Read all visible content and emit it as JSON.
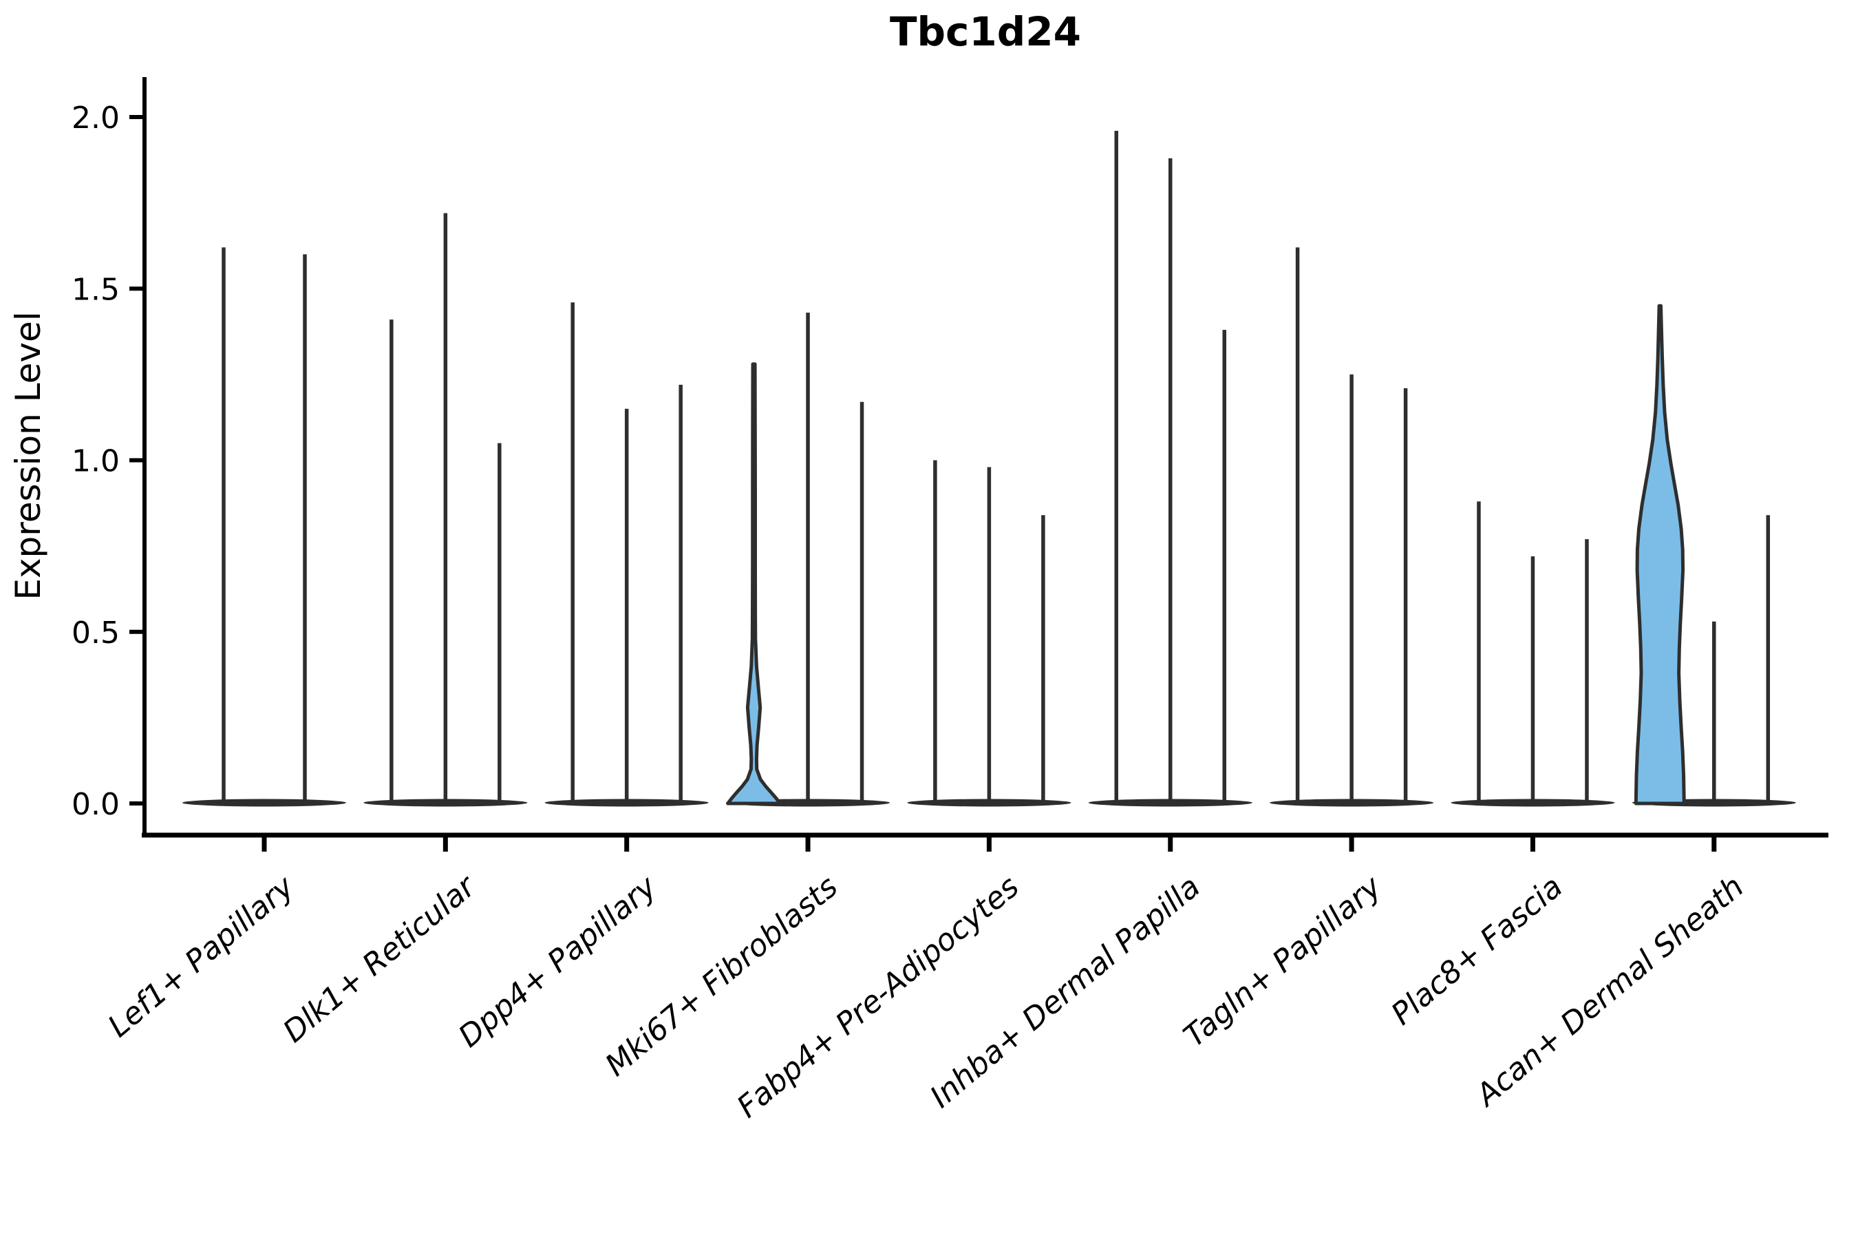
{
  "title": "Tbc1d24",
  "ylabel": "Expression Level",
  "colors": {
    "background": "#ffffff",
    "axis": "#000000",
    "text": "#000000",
    "violin_stroke": "#2e2e2e",
    "violin_fill": "#7cbde8"
  },
  "chart_data": {
    "type": "violin",
    "title": "Tbc1d24",
    "xlabel": "",
    "ylabel": "Expression Level",
    "ylim": [
      0,
      2.05
    ],
    "yticks": [
      0.0,
      0.5,
      1.0,
      1.5,
      2.0
    ],
    "ytick_labels": [
      "0.0",
      "0.5",
      "1.0",
      "1.5",
      "2.0"
    ],
    "grid": false,
    "legend_position": "none",
    "categories": [
      "Lef1+ Papillary",
      "Dlk1+ Reticular",
      "Dpp4+ Papillary",
      "Mki67+ Fibroblasts",
      "Fabp4+ Pre-Adipocytes",
      "Inhba+ Dermal Papilla",
      "Tagln+ Papillary",
      "Plac8+ Fascia",
      "Acan+ Dermal Sheath"
    ],
    "groups": [
      {
        "category": "Lef1+ Papillary",
        "violins": [
          {
            "max": 1.62,
            "filled": false
          },
          {
            "max": 1.6,
            "filled": false
          }
        ]
      },
      {
        "category": "Dlk1+ Reticular",
        "violins": [
          {
            "max": 1.41,
            "filled": false
          },
          {
            "max": 1.72,
            "filled": false
          },
          {
            "max": 1.05,
            "filled": false
          }
        ]
      },
      {
        "category": "Dpp4+ Papillary",
        "violins": [
          {
            "max": 1.46,
            "filled": false
          },
          {
            "max": 1.15,
            "filled": false
          },
          {
            "max": 1.22,
            "filled": false
          }
        ]
      },
      {
        "category": "Mki67+ Fibroblasts",
        "violins": [
          {
            "max": 1.28,
            "filled": true,
            "max_halfwidth": 38,
            "profile": [
              [
                1.28,
                0.04
              ],
              [
                1.1,
                0.045
              ],
              [
                0.9,
                0.05
              ],
              [
                0.7,
                0.05
              ],
              [
                0.55,
                0.055
              ],
              [
                0.48,
                0.06
              ],
              [
                0.4,
                0.1
              ],
              [
                0.33,
                0.18
              ],
              [
                0.28,
                0.24
              ],
              [
                0.22,
                0.18
              ],
              [
                0.17,
                0.12
              ],
              [
                0.13,
                0.1
              ],
              [
                0.1,
                0.11
              ],
              [
                0.07,
                0.25
              ],
              [
                0.05,
                0.45
              ],
              [
                0.03,
                0.68
              ],
              [
                0.015,
                0.85
              ],
              [
                0.0,
                1.0
              ]
            ]
          },
          {
            "max": 1.43,
            "filled": false
          },
          {
            "max": 1.17,
            "filled": false
          }
        ]
      },
      {
        "category": "Fabp4+ Pre-Adipocytes",
        "violins": [
          {
            "max": 1.0,
            "filled": false
          },
          {
            "max": 0.98,
            "filled": false
          },
          {
            "max": 0.84,
            "filled": false
          }
        ]
      },
      {
        "category": "Inhba+ Dermal Papilla",
        "violins": [
          {
            "max": 1.96,
            "filled": false
          },
          {
            "max": 1.88,
            "filled": false
          },
          {
            "max": 1.38,
            "filled": false
          }
        ]
      },
      {
        "category": "Tagln+ Papillary",
        "violins": [
          {
            "max": 1.62,
            "filled": false
          },
          {
            "max": 1.25,
            "filled": false
          },
          {
            "max": 1.21,
            "filled": false
          }
        ]
      },
      {
        "category": "Plac8+ Fascia",
        "violins": [
          {
            "max": 0.88,
            "filled": false
          },
          {
            "max": 0.72,
            "filled": false
          },
          {
            "max": 0.77,
            "filled": false
          }
        ]
      },
      {
        "category": "Acan+ Dermal Sheath",
        "violins": [
          {
            "max": 1.45,
            "filled": true,
            "max_halfwidth": 35,
            "profile": [
              [
                1.45,
                0.035
              ],
              [
                1.38,
                0.06
              ],
              [
                1.3,
                0.09
              ],
              [
                1.22,
                0.13
              ],
              [
                1.14,
                0.19
              ],
              [
                1.06,
                0.3
              ],
              [
                0.99,
                0.45
              ],
              [
                0.93,
                0.6
              ],
              [
                0.87,
                0.75
              ],
              [
                0.8,
                0.88
              ],
              [
                0.74,
                0.94
              ],
              [
                0.68,
                0.95
              ],
              [
                0.6,
                0.9
              ],
              [
                0.52,
                0.84
              ],
              [
                0.45,
                0.8
              ],
              [
                0.38,
                0.78
              ],
              [
                0.3,
                0.82
              ],
              [
                0.22,
                0.88
              ],
              [
                0.15,
                0.94
              ],
              [
                0.08,
                0.98
              ],
              [
                0.0,
                1.0
              ]
            ]
          },
          {
            "max": 0.53,
            "filled": false
          },
          {
            "max": 0.84,
            "filled": false
          }
        ]
      }
    ]
  }
}
